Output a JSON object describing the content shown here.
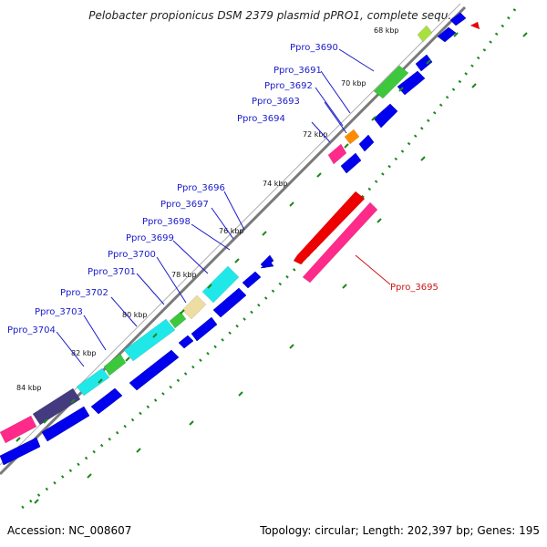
{
  "header": {
    "title": "Pelobacter propionicus DSM 2379 plasmid pPRO1, complete sequ..."
  },
  "footer": {
    "accession": "Accession: NC_008607",
    "summary": "Topology: circular; Length: 202,397 bp; Genes: 195"
  },
  "colors": {
    "backbone": "#808080",
    "forward_gene": "#0000ee",
    "tick": "#1b8a1b",
    "label_blue": "#1a1acc",
    "label_red": "#cc1a1a"
  },
  "tick_labels": [
    "68 kbp",
    "70 kbp",
    "72 kbp",
    "74 kbp",
    "76 kbp",
    "78 kbp",
    "80 kbp",
    "82 kbp",
    "84 kbp"
  ],
  "gene_labels": [
    "Ppro_3690",
    "Ppro_3691",
    "Ppro_3692",
    "Ppro_3693",
    "Ppro_3694",
    "Ppro_3695",
    "Ppro_3696",
    "Ppro_3697",
    "Ppro_3698",
    "Ppro_3699",
    "Ppro_3700",
    "Ppro_3701",
    "Ppro_3702",
    "Ppro_3703",
    "Ppro_3704"
  ]
}
